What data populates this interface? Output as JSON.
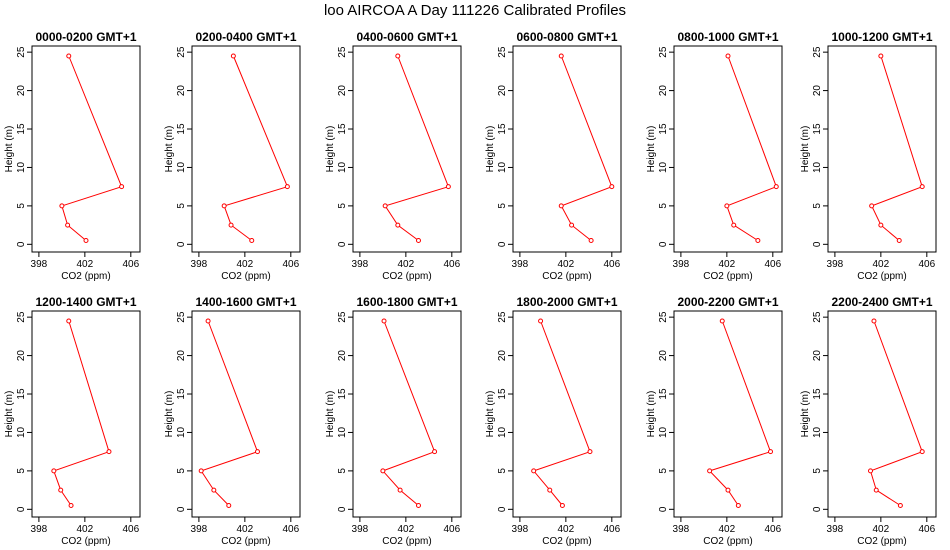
{
  "title": "loo AIRCOA A  Day 111226  Calibrated Profiles",
  "colors": {
    "series": "#ff0000",
    "axis": "#000000",
    "background": "#ffffff"
  },
  "chart_data": {
    "type": "line",
    "xlabel": "CO2 (ppm)",
    "ylabel": "Height (m)",
    "xlim": [
      398,
      407
    ],
    "ylim": [
      0,
      25
    ],
    "x_ticks": [
      398,
      402,
      406
    ],
    "y_ticks": [
      0,
      5,
      10,
      15,
      20,
      25
    ],
    "heights": [
      0.5,
      2.5,
      5.0,
      7.5,
      24.5
    ],
    "panels": [
      {
        "title": "0000-0200 GMT+1",
        "co2": [
          402.1,
          400.5,
          400.0,
          405.2,
          400.6
        ]
      },
      {
        "title": "0200-0400 GMT+1",
        "co2": [
          402.6,
          400.8,
          400.2,
          405.7,
          401.0
        ]
      },
      {
        "title": "0400-0600 GMT+1",
        "co2": [
          403.1,
          401.3,
          400.2,
          405.7,
          401.3
        ]
      },
      {
        "title": "0600-0800 GMT+1",
        "co2": [
          404.2,
          402.5,
          401.6,
          406.0,
          401.6
        ]
      },
      {
        "title": "0800-1000 GMT+1",
        "co2": [
          404.7,
          402.6,
          402.0,
          406.3,
          402.1
        ]
      },
      {
        "title": "1000-1200 GMT+1",
        "co2": [
          403.6,
          402.0,
          401.2,
          405.6,
          402.0
        ]
      },
      {
        "title": "1200-1400 GMT+1",
        "co2": [
          400.8,
          399.9,
          399.3,
          404.1,
          400.6
        ]
      },
      {
        "title": "1400-1600 GMT+1",
        "co2": [
          400.6,
          399.3,
          398.2,
          403.1,
          398.8
        ]
      },
      {
        "title": "1600-1800 GMT+1",
        "co2": [
          403.1,
          401.5,
          400.0,
          404.5,
          400.1
        ]
      },
      {
        "title": "1800-2000 GMT+1",
        "co2": [
          401.7,
          400.6,
          399.2,
          404.1,
          399.8
        ]
      },
      {
        "title": "2000-2200 GMT+1",
        "co2": [
          403.0,
          402.1,
          400.5,
          405.8,
          401.6
        ]
      },
      {
        "title": "2200-2400 GMT+1",
        "co2": [
          403.7,
          401.6,
          401.1,
          405.6,
          401.4
        ]
      }
    ]
  }
}
